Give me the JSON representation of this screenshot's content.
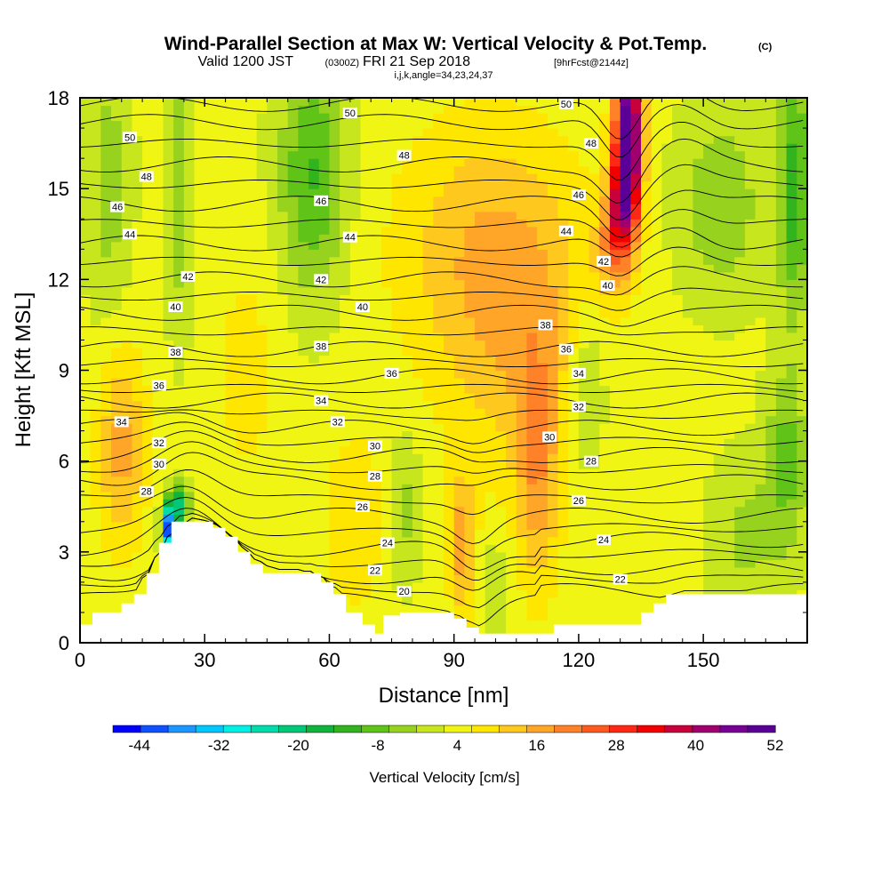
{
  "title": {
    "main": "Wind-Parallel Section at Max W: Vertical Velocity & Pot.Temp.",
    "copyright": "(C)",
    "valid_prefix": "Valid 1200 JST",
    "valid_utc": "(0300Z)",
    "valid_date": "FRI 21 Sep 2018",
    "forecast": "[9hrFcst@2144z]",
    "indices": "i,j,k,angle=34,23,24,37"
  },
  "chart_data": {
    "type": "heatmap",
    "xlabel": "Distance [nm]",
    "ylabel": "Height [Kft MSL]",
    "xlim": [
      0,
      175
    ],
    "ylim": [
      0,
      18
    ],
    "x_ticks": [
      "0",
      "30",
      "60",
      "90",
      "120",
      "150"
    ],
    "y_ticks": [
      "0",
      "3",
      "6",
      "9",
      "12",
      "15",
      "18"
    ],
    "colorbar": {
      "label": "Vertical Velocity [cm/s]",
      "tick_labels": [
        "-44",
        "-32",
        "-20",
        "-8",
        "4",
        "16",
        "28",
        "40",
        "52"
      ],
      "min": -48,
      "max": 52,
      "colors": [
        "#0000ff",
        "#0f50ff",
        "#1e96ff",
        "#00c8ff",
        "#00f0e6",
        "#00dcaa",
        "#00c878",
        "#10b43c",
        "#32b41e",
        "#60c318",
        "#96d21e",
        "#c8e61e",
        "#f0f514",
        "#ffe600",
        "#ffc81e",
        "#ffa528",
        "#ff8228",
        "#ff5a1e",
        "#ff2814",
        "#f00000",
        "#c8003c",
        "#a0006e",
        "#780096",
        "#5a0096"
      ]
    },
    "theta_contours": [
      {
        "value": 20,
        "label": "20"
      },
      {
        "value": 22,
        "label": "22"
      },
      {
        "value": 24,
        "label": "24"
      },
      {
        "value": 26,
        "label": "26"
      },
      {
        "value": 28,
        "label": "28"
      },
      {
        "value": 30,
        "label": "30"
      },
      {
        "value": 32,
        "label": "32"
      },
      {
        "value": 34,
        "label": "34"
      },
      {
        "value": 36,
        "label": "36"
      },
      {
        "value": 38,
        "label": "38"
      },
      {
        "value": 40,
        "label": "40"
      },
      {
        "value": 42,
        "label": "42"
      },
      {
        "value": 44,
        "label": "44"
      },
      {
        "value": 46,
        "label": "46"
      },
      {
        "value": 48,
        "label": "48"
      },
      {
        "value": 50,
        "label": "50"
      }
    ],
    "contour_labels": [
      {
        "text": "50",
        "x": 12,
        "y": 16.7
      },
      {
        "text": "50",
        "x": 65,
        "y": 17.5
      },
      {
        "text": "50",
        "x": 117,
        "y": 17.8
      },
      {
        "text": "48",
        "x": 16,
        "y": 15.4
      },
      {
        "text": "48",
        "x": 78,
        "y": 16.1
      },
      {
        "text": "48",
        "x": 123,
        "y": 16.5
      },
      {
        "text": "46",
        "x": 9,
        "y": 14.4
      },
      {
        "text": "46",
        "x": 58,
        "y": 14.6
      },
      {
        "text": "46",
        "x": 120,
        "y": 14.8
      },
      {
        "text": "44",
        "x": 12,
        "y": 13.5
      },
      {
        "text": "44",
        "x": 65,
        "y": 13.4
      },
      {
        "text": "44",
        "x": 117,
        "y": 13.6
      },
      {
        "text": "42",
        "x": 26,
        "y": 12.1
      },
      {
        "text": "42",
        "x": 58,
        "y": 12.0
      },
      {
        "text": "42",
        "x": 126,
        "y": 12.6
      },
      {
        "text": "40",
        "x": 23,
        "y": 11.1
      },
      {
        "text": "40",
        "x": 68,
        "y": 11.1
      },
      {
        "text": "40",
        "x": 127,
        "y": 11.8
      },
      {
        "text": "38",
        "x": 23,
        "y": 9.6
      },
      {
        "text": "38",
        "x": 58,
        "y": 9.8
      },
      {
        "text": "38",
        "x": 112,
        "y": 10.5
      },
      {
        "text": "36",
        "x": 19,
        "y": 8.5
      },
      {
        "text": "36",
        "x": 75,
        "y": 8.9
      },
      {
        "text": "36",
        "x": 117,
        "y": 9.7
      },
      {
        "text": "34",
        "x": 10,
        "y": 7.3
      },
      {
        "text": "34",
        "x": 58,
        "y": 8.0
      },
      {
        "text": "34",
        "x": 120,
        "y": 8.9
      },
      {
        "text": "32",
        "x": 19,
        "y": 6.6
      },
      {
        "text": "32",
        "x": 62,
        "y": 7.3
      },
      {
        "text": "32",
        "x": 120,
        "y": 7.8
      },
      {
        "text": "30",
        "x": 19,
        "y": 5.9
      },
      {
        "text": "30",
        "x": 71,
        "y": 6.5
      },
      {
        "text": "30",
        "x": 113,
        "y": 6.8
      },
      {
        "text": "28",
        "x": 16,
        "y": 5.0
      },
      {
        "text": "28",
        "x": 71,
        "y": 5.5
      },
      {
        "text": "28",
        "x": 123,
        "y": 6.0
      },
      {
        "text": "26",
        "x": 68,
        "y": 4.5
      },
      {
        "text": "26",
        "x": 120,
        "y": 4.7
      },
      {
        "text": "24",
        "x": 74,
        "y": 3.3
      },
      {
        "text": "24",
        "x": 126,
        "y": 3.4
      },
      {
        "text": "22",
        "x": 71,
        "y": 2.4
      },
      {
        "text": "22",
        "x": 130,
        "y": 2.1
      },
      {
        "text": "20",
        "x": 78,
        "y": 1.7
      }
    ],
    "annotations": []
  }
}
